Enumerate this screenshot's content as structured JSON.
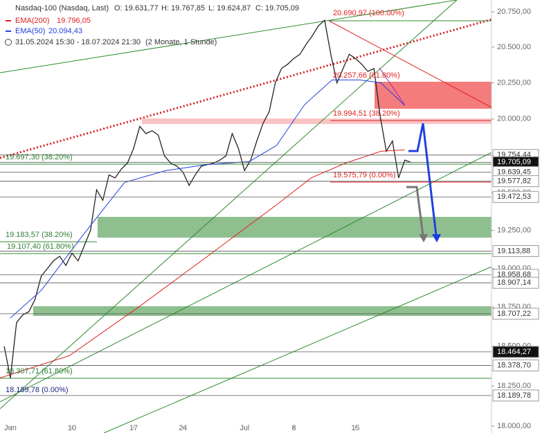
{
  "chart_data": {
    "type": "line",
    "log": true,
    "legend": {
      "instrument": "Nasdaq-100 (Nasdaq, Last)",
      "open": "O: 19.631,77",
      "high": "H: 19.767,85",
      "low": "L: 19.624,87",
      "close": "C: 19.705,09",
      "period": "31.05.2024 15:30 - 18.07.2024 21:30",
      "range": "(2 Monate, 1 Stunde)"
    },
    "ylim": [
      18000,
      20750
    ],
    "yticks": [
      {
        "value": 18000,
        "label": "18.000,00"
      },
      {
        "value": 18250,
        "label": "18.250,00"
      },
      {
        "value": 18500,
        "label": "18.500,00"
      },
      {
        "value": 18750,
        "label": "18.750,00"
      },
      {
        "value": 19000,
        "label": "19.000,00"
      },
      {
        "value": 19250,
        "label": "19.250,00"
      },
      {
        "value": 19500,
        "label": "19.500,00"
      },
      {
        "value": 19750,
        "label": "19.750,00"
      },
      {
        "value": 20000,
        "label": "20.000,00"
      },
      {
        "value": 20250,
        "label": "20.250,00"
      },
      {
        "value": 20500,
        "label": "20.500,00"
      },
      {
        "value": 20750,
        "label": "20.750,00"
      }
    ],
    "xlim": [
      -0.84,
      39.04
    ],
    "xticks": [
      {
        "value": 0,
        "label": "Jun"
      },
      {
        "value": 5,
        "label": "10"
      },
      {
        "value": 10,
        "label": "17"
      },
      {
        "value": 14,
        "label": "24"
      },
      {
        "value": 19,
        "label": "Jul"
      },
      {
        "value": 23,
        "label": "8"
      },
      {
        "value": 28,
        "label": "15"
      }
    ],
    "series": [
      {
        "name": "Nasdaq-100",
        "color": "#222222",
        "x": [
          -0.5,
          0,
          0.5,
          1,
          1.5,
          2,
          2.5,
          3,
          3.5,
          4,
          4.5,
          5,
          5.5,
          6,
          6.5,
          7,
          7.5,
          8,
          8.5,
          9,
          9.5,
          10,
          10.5,
          11,
          11.5,
          12,
          12.5,
          13,
          13.5,
          14,
          14.5,
          15,
          15.5,
          16,
          16.5,
          17,
          17.5,
          18,
          18.5,
          19,
          19.5,
          20,
          20.5,
          21,
          21.5,
          22,
          22.5,
          23,
          23.5,
          24,
          24.5,
          25,
          25.5,
          26,
          26.5,
          27,
          27.5,
          28,
          28.5,
          29,
          29.5,
          30,
          30.5,
          31,
          31.5,
          32,
          32.5
        ],
        "values": [
          18500,
          18300,
          18650,
          18700,
          18720,
          18800,
          18950,
          19000,
          19050,
          19080,
          19020,
          19100,
          19050,
          19150,
          19250,
          19520,
          19450,
          19620,
          19600,
          19660,
          19700,
          19800,
          19950,
          19900,
          19920,
          19890,
          19750,
          19700,
          19680,
          19640,
          19550,
          19620,
          19680,
          19690,
          19700,
          19720,
          19750,
          19900,
          19800,
          19650,
          19720,
          19850,
          19970,
          20050,
          20250,
          20350,
          20380,
          20420,
          20450,
          20520,
          20580,
          20650,
          20690,
          20450,
          20250,
          20350,
          20450,
          20420,
          20380,
          20330,
          20350,
          20020,
          19780,
          19850,
          19600,
          19720,
          19705
        ]
      },
      {
        "name": "EMA(200)",
        "value_label": "19.796,05",
        "color": "#e02020",
        "x": [
          -0.84,
          4.78,
          10.4,
          16,
          21.6,
          24.4,
          27.2,
          30.06,
          32
        ],
        "values": [
          18300,
          18440,
          18750,
          19080,
          19420,
          19600,
          19700,
          19780,
          19790
        ]
      },
      {
        "name": "EMA(50)",
        "value_label": "20.094,43",
        "color": "#1f3fdf",
        "x": [
          0,
          2.53,
          5.9,
          9.27,
          12.64,
          16,
          19.38,
          21.6,
          23.88,
          26.1,
          28.37,
          30.06,
          32
        ],
        "values": [
          18680,
          18860,
          19220,
          19570,
          19650,
          19690,
          19710,
          19820,
          20100,
          20270,
          20270,
          20250,
          20094
        ]
      }
    ],
    "price_tags": [
      {
        "value": 19754.44,
        "label": "19.754,44"
      },
      {
        "value": 19705.09,
        "label": "19.705,09",
        "highlight": true
      },
      {
        "value": 19639.45,
        "label": "19.639,45"
      },
      {
        "value": 19577.82,
        "label": "19.577,82"
      },
      {
        "value": 19472.53,
        "label": "19.472,53"
      },
      {
        "value": 19113.88,
        "label": "19.113,88"
      },
      {
        "value": 18958.68,
        "label": "18.958,68"
      },
      {
        "value": 18907.14,
        "label": "18.907,14"
      },
      {
        "value": 18707.22,
        "label": "18.707,22"
      },
      {
        "value": 18464.27,
        "label": "18.464,27",
        "highlight": true
      },
      {
        "value": 18378.7,
        "label": "18.378,70"
      },
      {
        "value": 18189.78,
        "label": "18.189,78"
      }
    ],
    "annotations": [
      {
        "text": "20.690,97 (100.00%)",
        "color": "#e02020"
      },
      {
        "text": "20.257,66 (61.80%)",
        "color": "#e02020"
      },
      {
        "text": "19.994,51 (38.20%)",
        "color": "#e02020"
      },
      {
        "text": "19.575,79 (0.00%)",
        "color": "#e02020"
      },
      {
        "text": "19.697,30 (38.20%)",
        "color": "#2e7d32"
      },
      {
        "text": "19.183,57 (38.20%)",
        "color": "#2e7d32"
      },
      {
        "text": "19.107,40 (61.80%)",
        "color": "#2e7d32"
      },
      {
        "text": "18.307,71 (61.80%)",
        "color": "#2e7d32"
      },
      {
        "text": "18.189,78 (0.00%)",
        "color": "#1a237e"
      }
    ]
  }
}
